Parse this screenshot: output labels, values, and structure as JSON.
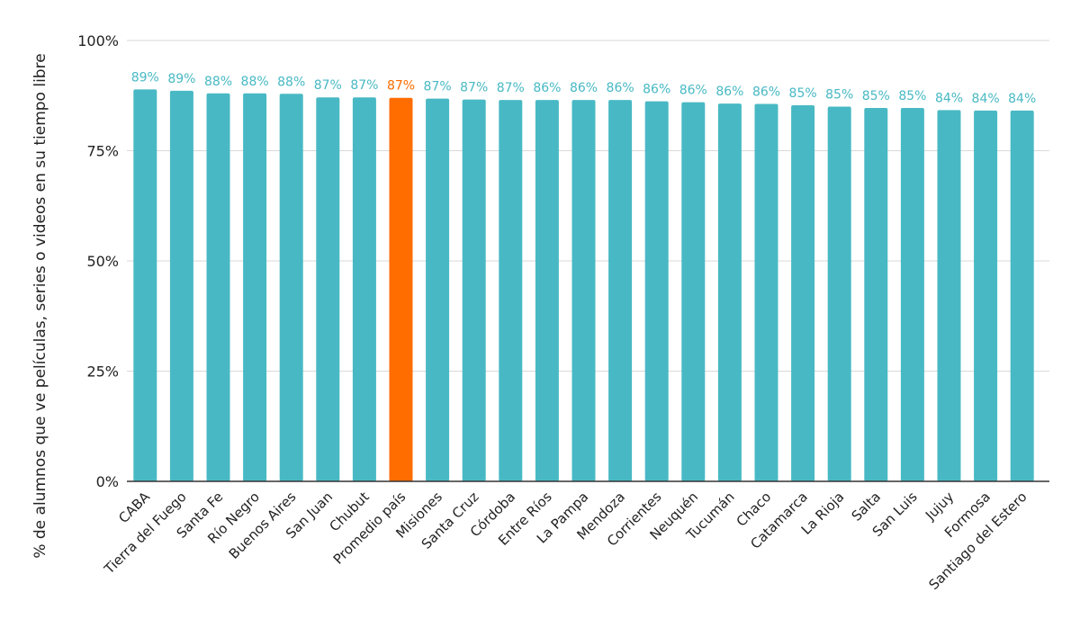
{
  "chart_data": {
    "type": "bar",
    "title": "",
    "xlabel": "",
    "ylabel": "% de alumnos que ve películas, series o videos en su tiempo libre",
    "ylim": [
      0,
      100
    ],
    "yticks": [
      0,
      25,
      50,
      75,
      100
    ],
    "ytick_labels": [
      "0%",
      "25%",
      "50%",
      "75%",
      "100%"
    ],
    "grid": "horizontal",
    "categories": [
      "CABA",
      "Tierra del Fuego",
      "Santa Fe",
      "Río Negro",
      "Buenos Aires",
      "San Juan",
      "Chubut",
      "Promedio país",
      "Misiones",
      "Santa Cruz",
      "Córdoba",
      "Entre Ríos",
      "La Pampa",
      "Mendoza",
      "Corrientes",
      "Neuquén",
      "Tucumán",
      "Chaco",
      "Catamarca",
      "La Rioja",
      "Salta",
      "San Luis",
      "Jujuy",
      "Formosa",
      "Santiago del Estero"
    ],
    "values": [
      88.9,
      88.6,
      88.0,
      88.0,
      87.9,
      87.1,
      87.1,
      87.0,
      86.8,
      86.6,
      86.5,
      86.5,
      86.5,
      86.5,
      86.2,
      86.0,
      85.7,
      85.6,
      85.3,
      85.0,
      84.7,
      84.7,
      84.2,
      84.1,
      84.1
    ],
    "data_labels": [
      "89%",
      "89%",
      "88%",
      "88%",
      "88%",
      "87%",
      "87%",
      "87%",
      "87%",
      "87%",
      "87%",
      "86%",
      "86%",
      "86%",
      "86%",
      "86%",
      "86%",
      "86%",
      "85%",
      "85%",
      "85%",
      "85%",
      "84%",
      "84%",
      "84%"
    ],
    "highlight_category": "Promedio país",
    "colors": {
      "bar": "#48b9c4",
      "highlight": "#ff6d00",
      "grid": "#d9d9d9",
      "axis": "#333333",
      "text": "#222222"
    }
  }
}
